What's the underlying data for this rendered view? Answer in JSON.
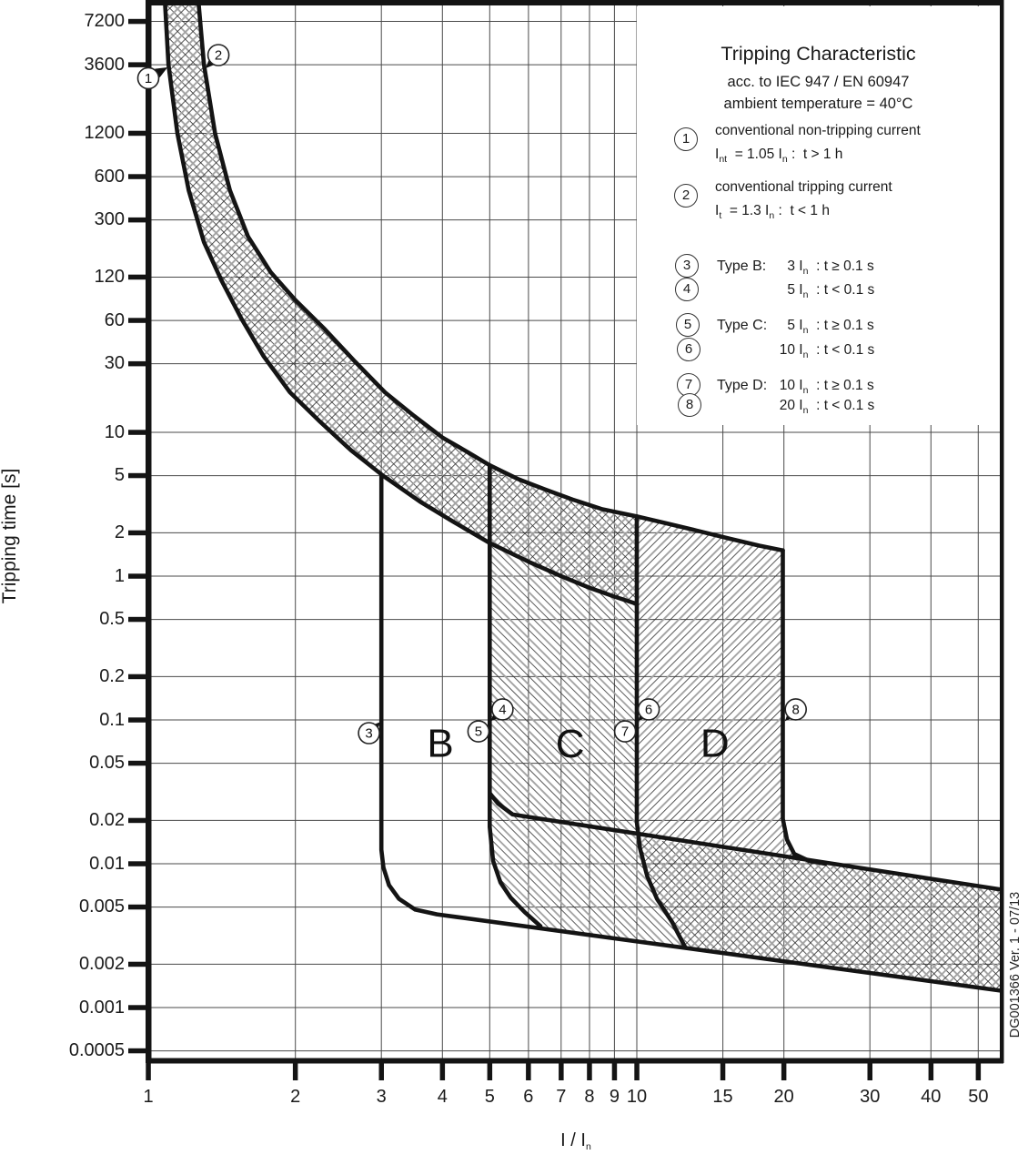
{
  "side_note": "DG001366 Ver. 1 - 07/13",
  "legend": {
    "title": "Tripping Characteristic",
    "subtitle_1": "acc. to IEC 947 / EN 60947",
    "subtitle_2": "ambient temperature = 40°C",
    "items": [
      {
        "num": "1",
        "text": "conventional non-tripping current",
        "formula": [
          {
            "t": "I"
          },
          {
            "t": "nt",
            "sub": true
          },
          {
            "t": "  = 1.05 I"
          },
          {
            "t": "n",
            "sub": true
          },
          {
            "t": " :  t > 1 h"
          }
        ]
      },
      {
        "num": "2",
        "text": "conventional tripping current",
        "formula": [
          {
            "t": "I"
          },
          {
            "t": "t",
            "sub": true
          },
          {
            "t": "  = 1.3 I"
          },
          {
            "t": "n",
            "sub": true
          },
          {
            "t": " :  t < 1 h"
          }
        ]
      },
      {
        "num": "3",
        "type_label": "Type B:",
        "value": {
          "num": "3",
          "segs": [
            {
              "t": " I"
            },
            {
              "t": "n",
              "sub": true
            },
            {
              "t": "  : t ≥ 0.1 s"
            }
          ]
        }
      },
      {
        "num": "4",
        "type_label": "",
        "value": {
          "num": "5",
          "segs": [
            {
              "t": " I"
            },
            {
              "t": "n",
              "sub": true
            },
            {
              "t": "  : t < 0.1 s"
            }
          ]
        }
      },
      {
        "num": "5",
        "type_label": "Type C:",
        "value": {
          "num": "5",
          "segs": [
            {
              "t": " I"
            },
            {
              "t": "n",
              "sub": true
            },
            {
              "t": "  : t ≥ 0.1 s"
            }
          ]
        }
      },
      {
        "num": "6",
        "type_label": "",
        "value": {
          "num": "10",
          "segs": [
            {
              "t": " I"
            },
            {
              "t": "n",
              "sub": true
            },
            {
              "t": "  : t < 0.1 s"
            }
          ]
        }
      },
      {
        "num": "7",
        "type_label": "Type D:",
        "value": {
          "num": "10",
          "segs": [
            {
              "t": " I"
            },
            {
              "t": "n",
              "sub": true
            },
            {
              "t": "  : t ≥ 0.1 s"
            }
          ]
        }
      },
      {
        "num": "8",
        "type_label": "",
        "value": {
          "num": "20",
          "segs": [
            {
              "t": " I"
            },
            {
              "t": "n",
              "sub": true
            },
            {
              "t": "  : t < 0.1 s"
            }
          ]
        }
      }
    ]
  },
  "axes": {
    "y_label": "Tripping time [s]",
    "x_label_main": "I / I",
    "x_label_sub": "n"
  },
  "chart_data": {
    "type": "line",
    "title": "Tripping Characteristic acc. to IEC 947 / EN 60947, ambient temperature = 40°C",
    "x_axis": {
      "label": "I / In",
      "scale": "log",
      "range": [
        1,
        55.7
      ],
      "ticks": [
        {
          "v": 1,
          "label": "1"
        },
        {
          "v": 2,
          "label": "2"
        },
        {
          "v": 3,
          "label": "3"
        },
        {
          "v": 4,
          "label": "4"
        },
        {
          "v": 5,
          "label": "5"
        },
        {
          "v": 6,
          "label": "6"
        },
        {
          "v": 7,
          "label": "7"
        },
        {
          "v": 8,
          "label": "8"
        },
        {
          "v": 9,
          "label": "9"
        },
        {
          "v": 10,
          "label": "10"
        },
        {
          "v": 15,
          "label": "15"
        },
        {
          "v": 20,
          "label": "20"
        },
        {
          "v": 30,
          "label": "30"
        },
        {
          "v": 40,
          "label": "40"
        },
        {
          "v": 50,
          "label": "50"
        }
      ]
    },
    "y_axis": {
      "label": "Tripping time [s]",
      "scale": "log",
      "range": [
        0.0004,
        11000
      ],
      "ticks": [
        {
          "v": 7200,
          "label": "7200"
        },
        {
          "v": 3600,
          "label": "3600"
        },
        {
          "v": 1200,
          "label": "1200"
        },
        {
          "v": 600,
          "label": "600"
        },
        {
          "v": 300,
          "label": "300"
        },
        {
          "v": 120,
          "label": "120"
        },
        {
          "v": 60,
          "label": "60"
        },
        {
          "v": 30,
          "label": "30"
        },
        {
          "v": 10,
          "label": "10"
        },
        {
          "v": 5,
          "label": "5"
        },
        {
          "v": 2,
          "label": "2"
        },
        {
          "v": 1,
          "label": "1"
        },
        {
          "v": 0.5,
          "label": "0.5"
        },
        {
          "v": 0.2,
          "label": "0.2"
        },
        {
          "v": 0.1,
          "label": "0.1"
        },
        {
          "v": 0.05,
          "label": "0.05"
        },
        {
          "v": 0.02,
          "label": "0.02"
        },
        {
          "v": 0.01,
          "label": "0.01"
        },
        {
          "v": 0.005,
          "label": "0.005"
        },
        {
          "v": 0.002,
          "label": "0.002"
        },
        {
          "v": 0.001,
          "label": "0.001"
        },
        {
          "v": 0.0005,
          "label": "0.0005"
        }
      ]
    },
    "series": [
      {
        "id": "conventional_non_tripping_1_05_In",
        "marker": "1",
        "points": [
          [
            1.081,
            10500
          ],
          [
            1.1,
            3600
          ],
          [
            1.147,
            1200
          ],
          [
            1.21,
            480
          ],
          [
            1.3,
            210
          ],
          [
            1.41,
            115
          ],
          [
            1.55,
            62
          ],
          [
            1.72,
            34
          ],
          [
            1.95,
            19
          ],
          [
            2.25,
            11.8
          ],
          [
            2.6,
            7.5
          ],
          [
            3.03,
            4.97
          ],
          [
            3.6,
            3.3
          ],
          [
            4.2,
            2.4
          ],
          [
            5.0,
            1.7
          ],
          [
            6.0,
            1.26
          ],
          [
            7.0,
            1.0
          ],
          [
            8.0,
            0.83
          ],
          [
            9.0,
            0.72
          ],
          [
            9.9,
            0.648
          ]
        ]
      },
      {
        "id": "conventional_tripping_1_3_In",
        "marker": "2",
        "points": [
          [
            1.266,
            10500
          ],
          [
            1.3,
            3600
          ],
          [
            1.37,
            1200
          ],
          [
            1.47,
            480
          ],
          [
            1.6,
            230
          ],
          [
            1.78,
            130
          ],
          [
            2.0,
            83
          ],
          [
            2.3,
            52
          ],
          [
            2.65,
            31
          ],
          [
            3.05,
            19
          ],
          [
            3.5,
            13
          ],
          [
            4.0,
            9.2
          ],
          [
            4.5,
            7.3
          ],
          [
            5.0,
            5.9
          ],
          [
            5.7,
            4.75
          ],
          [
            6.5,
            4.0
          ],
          [
            7.4,
            3.4
          ],
          [
            8.5,
            2.92
          ],
          [
            10.0,
            2.6
          ],
          [
            11.5,
            2.33
          ],
          [
            13.2,
            2.08
          ],
          [
            15.5,
            1.82
          ],
          [
            17.8,
            1.63
          ],
          [
            19.9,
            1.51
          ]
        ]
      },
      {
        "id": "type_b_lower_3_In",
        "marker": "3",
        "points": [
          [
            3.0,
            4.97
          ],
          [
            3.0,
            0.0125
          ],
          [
            3.03,
            0.0094
          ],
          [
            3.11,
            0.0071
          ],
          [
            3.26,
            0.0057
          ],
          [
            3.52,
            0.0048
          ],
          [
            3.9,
            0.00445
          ],
          [
            4.3,
            0.00425
          ],
          [
            55.7,
            0.00131
          ]
        ]
      },
      {
        "id": "type_bc_5_In_vertical",
        "marker": "4/5",
        "points": [
          [
            5.0,
            5.9
          ],
          [
            5.0,
            0.018
          ],
          [
            5.08,
            0.0105
          ],
          [
            5.26,
            0.0074
          ],
          [
            5.52,
            0.0058
          ],
          [
            5.9,
            0.0046
          ],
          [
            6.35,
            0.00368
          ]
        ]
      },
      {
        "id": "instantaneous_upper_limit",
        "points": [
          [
            5.0,
            0.031
          ],
          [
            5.2,
            0.0262
          ],
          [
            5.57,
            0.022
          ],
          [
            55.7,
            0.00661
          ]
        ]
      },
      {
        "id": "type_cd_10_In_vertical",
        "marker": "6/7",
        "points": [
          [
            10.0,
            2.6
          ],
          [
            10.0,
            0.0195
          ],
          [
            10.15,
            0.0128
          ],
          [
            10.5,
            0.0082
          ],
          [
            11.0,
            0.0057
          ],
          [
            11.8,
            0.00395
          ],
          [
            12.55,
            0.00264
          ]
        ]
      },
      {
        "id": "type_d_20_In_vertical",
        "marker": "8",
        "points": [
          [
            19.9,
            1.51
          ],
          [
            19.9,
            0.0205
          ],
          [
            20.3,
            0.0147
          ],
          [
            21.0,
            0.0117
          ],
          [
            22.5,
            0.0105
          ],
          [
            24.3,
            0.01
          ]
        ]
      }
    ],
    "regions": [
      {
        "id": "thermal_band",
        "hatch": "cross"
      },
      {
        "id": "type_c_zone",
        "hatch": "left"
      },
      {
        "id": "type_d_zone",
        "hatch": "right"
      },
      {
        "id": "instantaneous_band",
        "hatch": "cross"
      }
    ],
    "zone_letters": [
      {
        "label": "B",
        "i": 3.96,
        "t": 0.0685
      },
      {
        "label": "C",
        "i": 7.3,
        "t": 0.068
      },
      {
        "label": "D",
        "i": 14.45,
        "t": 0.0685
      }
    ],
    "markers": [
      {
        "n": "1",
        "at": [
          1.0,
          2900
        ],
        "tip": [
          1.095,
          3450
        ]
      },
      {
        "n": "2",
        "at": [
          1.392,
          4200
        ],
        "tip": [
          1.31,
          3400
        ]
      },
      {
        "n": "3",
        "at": [
          2.83,
          0.081
        ],
        "tip": [
          2.99,
          0.097
        ]
      },
      {
        "n": "4",
        "at": [
          5.31,
          0.1185
        ],
        "tip": [
          5.02,
          0.098
        ]
      },
      {
        "n": "5",
        "at": [
          4.74,
          0.0832
        ],
        "tip": [
          4.98,
          0.087
        ]
      },
      {
        "n": "6",
        "at": [
          10.58,
          0.1185
        ],
        "tip": [
          10.05,
          0.098
        ]
      },
      {
        "n": "7",
        "at": [
          9.46,
          0.0832
        ],
        "tip": [
          9.98,
          0.087
        ]
      },
      {
        "n": "8",
        "at": [
          21.15,
          0.1185
        ],
        "tip": [
          20.1,
          0.098
        ]
      }
    ]
  }
}
